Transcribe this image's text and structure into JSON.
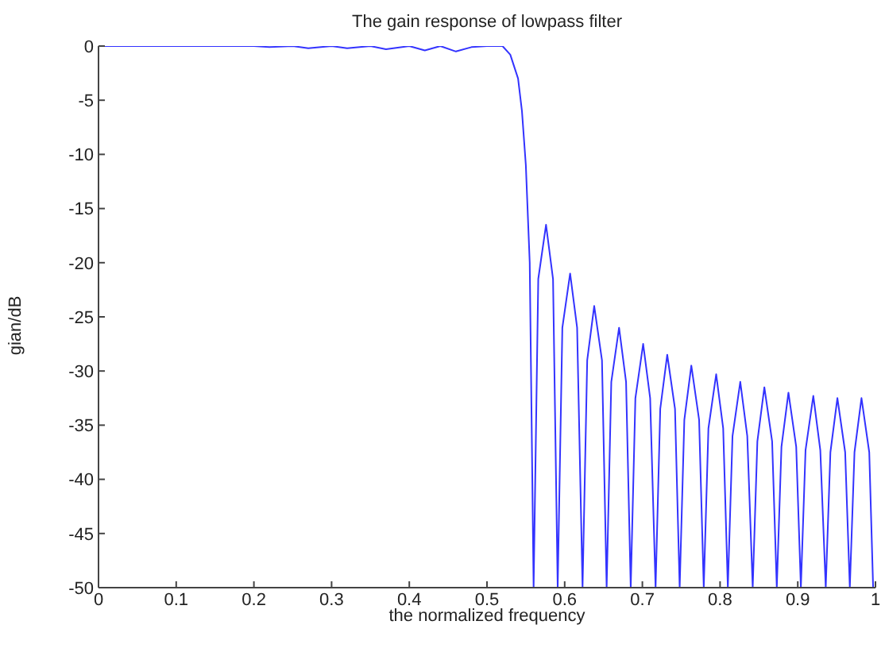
{
  "chart_data": {
    "type": "line",
    "title": "The gain response of lowpass filter",
    "xlabel": "the normalized frequency",
    "ylabel": "gian/dB",
    "xlim": [
      0,
      1
    ],
    "xticks": [
      0,
      0.1,
      0.2,
      0.3,
      0.4,
      0.5,
      0.6,
      0.7,
      0.8,
      0.9,
      1
    ],
    "ylim": [
      -50,
      0
    ],
    "yticks": [
      0,
      -5,
      -10,
      -15,
      -20,
      -25,
      -30,
      -35,
      -40,
      -45,
      -50
    ],
    "grid": false,
    "legend": false,
    "marker": "none",
    "line_style": "solid",
    "series": [
      {
        "color": "#3333ff",
        "x": [
          0,
          0.1,
          0.2,
          0.22,
          0.25,
          0.27,
          0.3,
          0.32,
          0.35,
          0.37,
          0.4,
          0.42,
          0.44,
          0.46,
          0.48,
          0.5,
          0.52,
          0.53,
          0.54,
          0.545,
          0.55,
          0.555,
          0.56,
          0.566,
          0.576,
          0.585,
          0.591,
          0.597,
          0.607,
          0.616,
          0.623,
          0.629,
          0.638,
          0.648,
          0.654,
          0.66,
          0.67,
          0.679,
          0.685,
          0.691,
          0.701,
          0.71,
          0.717,
          0.723,
          0.732,
          0.742,
          0.748,
          0.754,
          0.763,
          0.773,
          0.779,
          0.785,
          0.795,
          0.804,
          0.81,
          0.816,
          0.826,
          0.835,
          0.842,
          0.848,
          0.857,
          0.867,
          0.873,
          0.879,
          0.888,
          0.898,
          0.904,
          0.91,
          0.92,
          0.929,
          0.936,
          0.942,
          0.951,
          0.961,
          0.967,
          0.973,
          0.982,
          0.992,
          0.997
        ],
        "values": [
          0,
          0,
          0,
          -0.1,
          0,
          -0.2,
          0,
          -0.2,
          0,
          -0.3,
          0,
          -0.4,
          0,
          -0.5,
          -0.1,
          0,
          0,
          -0.8,
          -3,
          -6,
          -11,
          -20,
          -50,
          -21.5,
          -16.5,
          -21.5,
          -50,
          -26,
          -21,
          -26,
          -50,
          -29,
          -24,
          -29,
          -50,
          -31,
          -26,
          -31,
          -50,
          -32.5,
          -27.5,
          -32.5,
          -50,
          -33.5,
          -28.5,
          -33.5,
          -50,
          -34.5,
          -29.5,
          -34.5,
          -50,
          -35.3,
          -30.3,
          -35.3,
          -50,
          -36,
          -31,
          -36,
          -50,
          -36.5,
          -31.5,
          -36.5,
          -50,
          -37,
          -32,
          -37,
          -50,
          -37.3,
          -32.3,
          -37.3,
          -50,
          -37.5,
          -32.5,
          -37.5,
          -50,
          -37.5,
          -32.5,
          -37.5,
          -50
        ]
      }
    ]
  }
}
